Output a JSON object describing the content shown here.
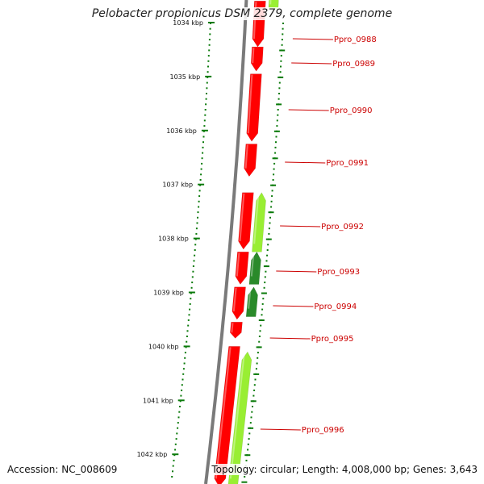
{
  "title": "Pelobacter propionicus DSM 2379, complete genome",
  "accession_line": "Accession: NC_008609",
  "summary_line": "Topology: circular; Length: 4,008,000 bp; Genes: 3,643",
  "colors": {
    "backbone": "#7a7a7a",
    "tick": "#0a7a0a",
    "forward_gene": "#ff0000",
    "reverse_gene_dark": "#2a8a2a",
    "reverse_gene_light": "#99ee33",
    "label": "#cc0000"
  },
  "ruler": {
    "unit": "kbp",
    "ticks": [
      {
        "kbp": 1034,
        "label": "1034 kbp"
      },
      {
        "kbp": 1035,
        "label": "1035 kbp"
      },
      {
        "kbp": 1036,
        "label": "1036 kbp"
      },
      {
        "kbp": 1037,
        "label": "1037 kbp"
      },
      {
        "kbp": 1038,
        "label": "1038 kbp"
      },
      {
        "kbp": 1039,
        "label": "1039 kbp"
      },
      {
        "kbp": 1040,
        "label": "1040 kbp"
      },
      {
        "kbp": 1041,
        "label": "1041 kbp"
      },
      {
        "kbp": 1042,
        "label": "1042 kbp"
      }
    ]
  },
  "genes": [
    {
      "label": "Ppro_0988",
      "strand": "+",
      "start_kbp": 1033.6,
      "end_kbp": 1034.45
    },
    {
      "label": "Ppro_0989",
      "strand": "+",
      "start_kbp": 1034.45,
      "end_kbp": 1034.9
    },
    {
      "label": "Ppro_0990",
      "strand": "+",
      "start_kbp": 1034.95,
      "end_kbp": 1036.2
    },
    {
      "label": "Ppro_0991",
      "strand": "+",
      "start_kbp": 1036.25,
      "end_kbp": 1036.85
    },
    {
      "label": "Ppro_0992",
      "strand": "+",
      "start_kbp": 1037.15,
      "end_kbp": 1038.2
    },
    {
      "label": "Ppro_0993",
      "strand": "+",
      "start_kbp": 1038.25,
      "end_kbp": 1038.85
    },
    {
      "label": "Ppro_0994",
      "strand": "+",
      "start_kbp": 1038.9,
      "end_kbp": 1039.5
    },
    {
      "label": "Ppro_0995",
      "strand": "+",
      "start_kbp": 1039.55,
      "end_kbp": 1039.85
    },
    {
      "label": "Ppro_0996",
      "strand": "+",
      "start_kbp": 1040.0,
      "end_kbp": 1042.6
    }
  ],
  "reverse_genes": [
    {
      "strand": "-",
      "start_kbp": 1033.5,
      "end_kbp": 1033.75,
      "shade": "light"
    },
    {
      "strand": "-",
      "start_kbp": 1037.15,
      "end_kbp": 1038.25,
      "shade": "light"
    },
    {
      "strand": "-",
      "start_kbp": 1038.25,
      "end_kbp": 1038.85,
      "shade": "dark"
    },
    {
      "strand": "-",
      "start_kbp": 1038.9,
      "end_kbp": 1039.45,
      "shade": "dark"
    },
    {
      "strand": "-",
      "start_kbp": 1040.1,
      "end_kbp": 1042.6,
      "shade": "light"
    }
  ]
}
